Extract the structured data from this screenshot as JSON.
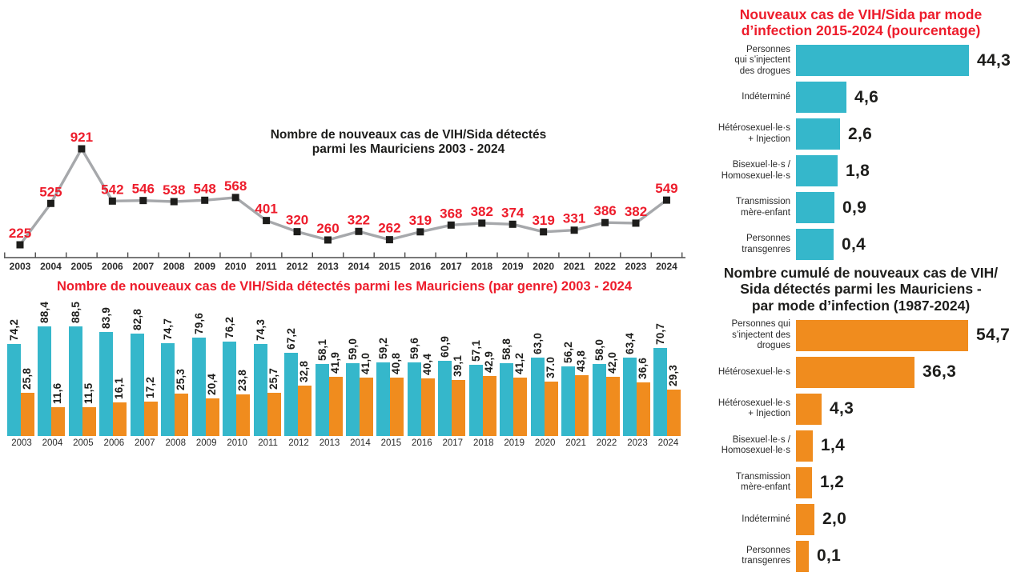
{
  "colors": {
    "cyan": "#35b7cb",
    "orange": "#f08c1e",
    "red": "#ed1c2b",
    "line_gray": "#a6a8ab",
    "marker_black": "#1d1d1b",
    "axis": "#4d4d4d",
    "text_black": "#1d1d1b"
  },
  "chart_data": [
    {
      "type": "line",
      "title": "Nombre de nouveaux cas de VIH/Sida détectés\nparmi les Mauriciens 2003 - 2024",
      "x": [
        2003,
        2004,
        2005,
        2006,
        2007,
        2008,
        2009,
        2010,
        2011,
        2012,
        2013,
        2014,
        2015,
        2016,
        2017,
        2018,
        2019,
        2020,
        2021,
        2022,
        2023,
        2024
      ],
      "values": [
        225,
        525,
        921,
        542,
        546,
        538,
        548,
        568,
        401,
        320,
        260,
        322,
        262,
        319,
        368,
        382,
        374,
        319,
        331,
        386,
        382,
        549
      ],
      "point_labels": [
        "225",
        "525",
        "921",
        "542",
        "546",
        "538",
        "548",
        "568",
        "401",
        "320",
        "260",
        "322",
        "262",
        "319",
        "368",
        "382",
        "374",
        "319",
        "331",
        "386",
        "382",
        "549"
      ],
      "ylim": [
        130,
        1000
      ],
      "grid": false,
      "legend": "none"
    },
    {
      "type": "bar",
      "title": "Nombre de nouveaux cas de VIH/Sida détectés parmi les Mauriciens (par genre) 2003 - 2024",
      "categories": [
        2003,
        2004,
        2005,
        2006,
        2007,
        2008,
        2009,
        2010,
        2011,
        2012,
        2013,
        2014,
        2015,
        2016,
        2017,
        2018,
        2019,
        2020,
        2021,
        2022,
        2023,
        2024
      ],
      "series": [
        {
          "color": "#35b7cb",
          "values": [
            74.2,
            88.4,
            88.5,
            83.9,
            82.8,
            74.7,
            79.6,
            76.2,
            74.3,
            67.2,
            58.1,
            59.0,
            59.2,
            59.6,
            60.9,
            57.1,
            58.8,
            63.0,
            56.2,
            58.0,
            63.4,
            70.7
          ],
          "labels": [
            "74,2",
            "88,4",
            "88,5",
            "83,9",
            "82,8",
            "74,7",
            "79,6",
            "76,2",
            "74,3",
            "67,2",
            "58,1",
            "59,0",
            "59,2",
            "59,6",
            "60,9",
            "57,1",
            "58,8",
            "63,0",
            "56,2",
            "58,0",
            "63,4",
            "70,7"
          ]
        },
        {
          "color": "#f08c1e",
          "values": [
            25.8,
            11.6,
            11.5,
            16.1,
            17.2,
            25.3,
            20.4,
            23.8,
            25.7,
            32.8,
            41.9,
            41.0,
            40.8,
            40.4,
            39.1,
            42.9,
            41.2,
            37.0,
            43.8,
            42.0,
            36.6,
            29.3
          ],
          "labels": [
            "25,8",
            "11,6",
            "11,5",
            "16,1",
            "17,2",
            "25,3",
            "20,4",
            "23,8",
            "25,7",
            "32,8",
            "41,9",
            "41,0",
            "40,8",
            "40,4",
            "39,1",
            "42,9",
            "41,2",
            "37.0",
            "43,8",
            "42,0",
            "36,6",
            "29,3"
          ]
        }
      ],
      "ylim": [
        0,
        100
      ],
      "grid": false,
      "legend": "none"
    },
    {
      "type": "bar",
      "orientation": "horizontal",
      "title": "Nouveaux cas de VIH/Sida par mode\nd’infection 2015-2024 (pourcentage)",
      "title_color": "#ed1c2b",
      "bar_color": "#35b7cb",
      "categories": [
        "Personnes\nqui s’injectent\ndes drogues",
        "Indéterminé",
        "Hétérosexuel·le·s\n+ Injection",
        "Bisexuel·le·s /\nHomosexuel·le·s",
        "Transmission\nmère-enfant",
        "Personnes\ntransgenres"
      ],
      "values": [
        44.3,
        4.6,
        2.6,
        1.8,
        0.9,
        0.4
      ],
      "labels": [
        "44,3",
        "4,6",
        "2,6",
        "1,8",
        "0,9",
        "0,4"
      ],
      "grid": false,
      "legend": "none"
    },
    {
      "type": "bar",
      "orientation": "horizontal",
      "title": "Nombre cumulé de nouveaux cas de VIH/\nSida détectés parmi les Mauriciens -\npar mode d’infection (1987-2024)",
      "title_color": "#1d1d1b",
      "bar_color": "#f08c1e",
      "categories": [
        "Personnes qui\ns’injectent des\ndrogues",
        "Hétérosexuel·le·s",
        "Hétérosexuel·le·s\n+ Injection",
        "Bisexuel·le·s /\nHomosexuel·le·s",
        "Transmission\nmère-enfant",
        "Indéterminé",
        "Personnes\ntransgenres"
      ],
      "values": [
        54.7,
        36.3,
        4.3,
        1.4,
        1.2,
        2.0,
        0.1
      ],
      "labels": [
        "54,7",
        "36,3",
        "4,3",
        "1,4",
        "1,2",
        "2,0",
        "0,1"
      ],
      "grid": false,
      "legend": "none"
    }
  ]
}
